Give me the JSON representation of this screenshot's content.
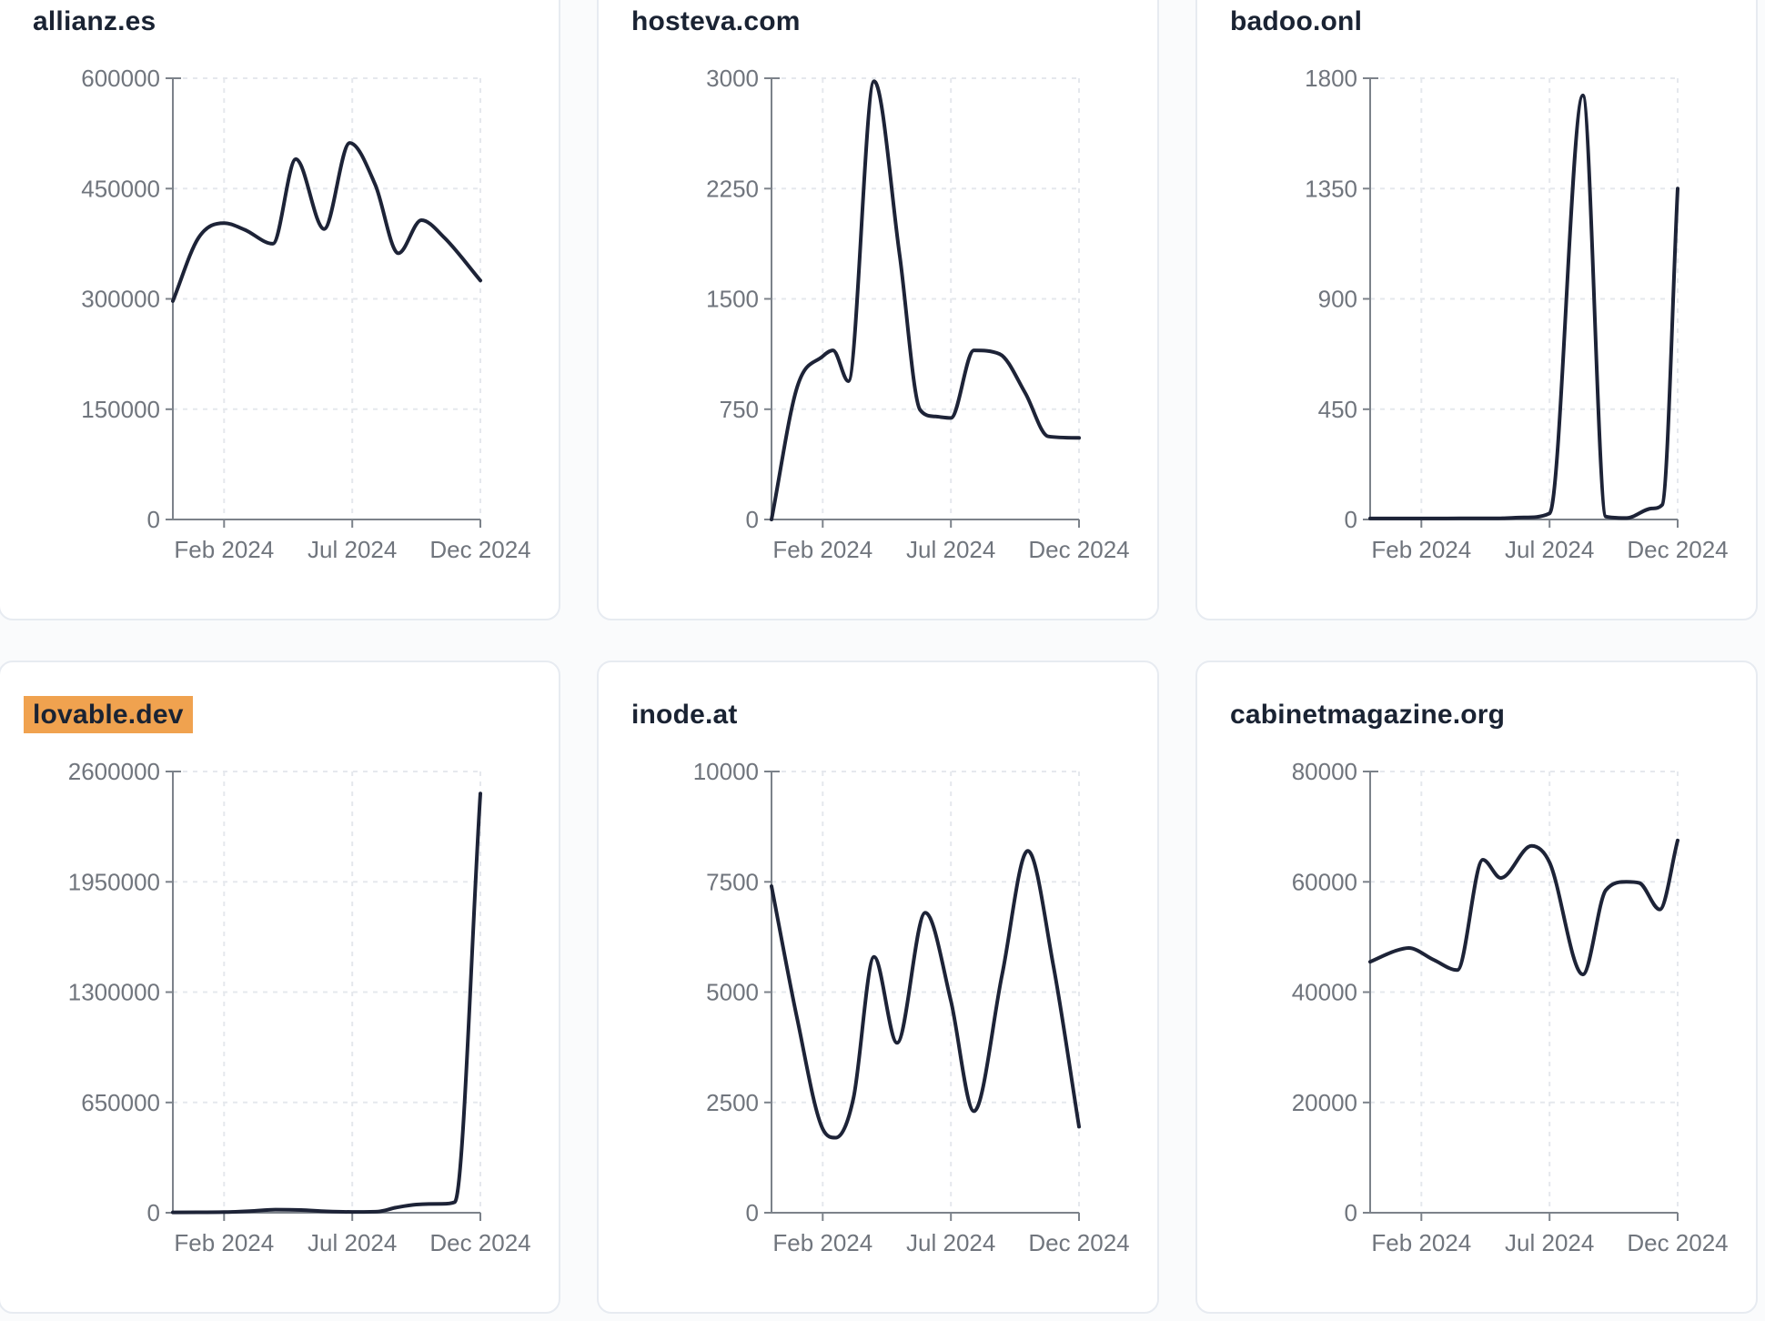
{
  "styles": {
    "page_bg": "#fafbfc",
    "card_bg": "#ffffff",
    "card_border": "#e7ebf1",
    "title_color": "#1a2333",
    "highlight_color": "#f0a24f",
    "line_color": "#1d2337",
    "axis_color": "#7c828a",
    "tick_label_color": "#70757d",
    "grid_color": "#e5e8ed"
  },
  "x_ticks": [
    {
      "pos": 2,
      "label": "Feb 2024"
    },
    {
      "pos": 7,
      "label": "Jul 2024"
    },
    {
      "pos": 12,
      "label": "Dec 2024"
    }
  ],
  "chart_data": [
    {
      "type": "line",
      "title": "allianz.es",
      "highlight": false,
      "ylim": [
        0,
        600000
      ],
      "y_ticks": [
        0,
        150000,
        300000,
        450000,
        600000
      ],
      "x_tick_labels": [
        "Feb 2024",
        "Jul 2024",
        "Dec 2024"
      ],
      "x_domain_months": [
        0,
        12
      ],
      "grid": true,
      "legend": false,
      "points": [
        [
          0,
          297000
        ],
        [
          1,
          383000
        ],
        [
          2,
          403000
        ],
        [
          2.8,
          394000
        ],
        [
          3.9,
          375000
        ],
        [
          4.8,
          490000
        ],
        [
          5.9,
          395000
        ],
        [
          6.9,
          512000
        ],
        [
          7.9,
          455000
        ],
        [
          8.8,
          362000
        ],
        [
          9.7,
          407000
        ],
        [
          10.6,
          383000
        ],
        [
          12,
          325000
        ]
      ]
    },
    {
      "type": "line",
      "title": "hosteva.com",
      "highlight": false,
      "ylim": [
        0,
        3000
      ],
      "y_ticks": [
        0,
        750,
        1500,
        2250,
        3000
      ],
      "x_tick_labels": [
        "Feb 2024",
        "Jul 2024",
        "Dec 2024"
      ],
      "x_domain_months": [
        0,
        12
      ],
      "grid": true,
      "legend": false,
      "points": [
        [
          0,
          0
        ],
        [
          1,
          900
        ],
        [
          2,
          1110
        ],
        [
          2.4,
          1150
        ],
        [
          3,
          940
        ],
        [
          4,
          2980
        ],
        [
          5,
          1800
        ],
        [
          5.8,
          745
        ],
        [
          6.4,
          700
        ],
        [
          7,
          690
        ],
        [
          7.9,
          1150
        ],
        [
          8.9,
          1125
        ],
        [
          9.9,
          860
        ],
        [
          10.8,
          565
        ],
        [
          12,
          555
        ]
      ]
    },
    {
      "type": "line",
      "title": "badoo.onl",
      "highlight": false,
      "ylim": [
        0,
        1800
      ],
      "y_ticks": [
        0,
        450,
        900,
        1350,
        1800
      ],
      "x_tick_labels": [
        "Feb 2024",
        "Jul 2024",
        "Dec 2024"
      ],
      "x_domain_months": [
        0,
        12
      ],
      "grid": true,
      "legend": false,
      "points": [
        [
          0,
          4
        ],
        [
          1,
          4
        ],
        [
          2,
          4
        ],
        [
          3,
          4
        ],
        [
          4,
          5
        ],
        [
          5,
          5
        ],
        [
          6,
          8
        ],
        [
          7,
          25
        ],
        [
          8.3,
          1730
        ],
        [
          9.2,
          12
        ],
        [
          10,
          6
        ],
        [
          11,
          45
        ],
        [
          11.4,
          60
        ],
        [
          12,
          1350
        ]
      ]
    },
    {
      "type": "line",
      "title": "lovable.dev",
      "highlight": true,
      "ylim": [
        0,
        2600000
      ],
      "y_ticks": [
        0,
        650000,
        1300000,
        1950000,
        2600000
      ],
      "x_tick_labels": [
        "Feb 2024",
        "Jul 2024",
        "Dec 2024"
      ],
      "x_domain_months": [
        0,
        12
      ],
      "grid": true,
      "legend": false,
      "points": [
        [
          0,
          2000
        ],
        [
          1,
          2500
        ],
        [
          2,
          3500
        ],
        [
          3,
          9000
        ],
        [
          4,
          18000
        ],
        [
          5,
          16000
        ],
        [
          6,
          8000
        ],
        [
          7,
          5000
        ],
        [
          8,
          7000
        ],
        [
          8.7,
          30000
        ],
        [
          9.5,
          48000
        ],
        [
          10.5,
          52000
        ],
        [
          11,
          62000
        ],
        [
          12,
          2470000
        ]
      ]
    },
    {
      "type": "line",
      "title": "inode.at",
      "highlight": false,
      "ylim": [
        0,
        10000
      ],
      "y_ticks": [
        0,
        2500,
        5000,
        7500,
        10000
      ],
      "x_tick_labels": [
        "Feb 2024",
        "Jul 2024",
        "Dec 2024"
      ],
      "x_domain_months": [
        0,
        12
      ],
      "grid": true,
      "legend": false,
      "points": [
        [
          0,
          7400
        ],
        [
          1,
          4400
        ],
        [
          2,
          1900
        ],
        [
          2.5,
          1700
        ],
        [
          3.2,
          2600
        ],
        [
          4,
          5800
        ],
        [
          4.9,
          3850
        ],
        [
          6,
          6800
        ],
        [
          7,
          4800
        ],
        [
          7.9,
          2300
        ],
        [
          9,
          5400
        ],
        [
          10,
          8200
        ],
        [
          11,
          5600
        ],
        [
          12,
          1950
        ]
      ]
    },
    {
      "type": "line",
      "title": "cabinetmagazine.org",
      "highlight": false,
      "ylim": [
        0,
        80000
      ],
      "y_ticks": [
        0,
        20000,
        40000,
        60000,
        80000
      ],
      "x_tick_labels": [
        "Feb 2024",
        "Jul 2024",
        "Dec 2024"
      ],
      "x_domain_months": [
        0,
        12
      ],
      "grid": true,
      "legend": false,
      "points": [
        [
          0,
          45500
        ],
        [
          1,
          47500
        ],
        [
          1.5,
          48000
        ],
        [
          2.5,
          45800
        ],
        [
          3.4,
          44000
        ],
        [
          4.4,
          64000
        ],
        [
          5.1,
          60700
        ],
        [
          6.3,
          66500
        ],
        [
          7,
          63500
        ],
        [
          8.3,
          43200
        ],
        [
          9.2,
          58500
        ],
        [
          10,
          60000
        ],
        [
          10.5,
          59800
        ],
        [
          11.3,
          55000
        ],
        [
          12,
          67500
        ]
      ]
    }
  ]
}
